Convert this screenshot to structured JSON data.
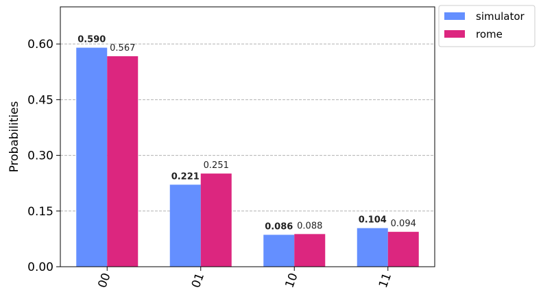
{
  "chart_data": {
    "type": "bar",
    "title": "",
    "xlabel": "",
    "ylabel": "Probabilities",
    "categories": [
      "00",
      "01",
      "10",
      "11"
    ],
    "series": [
      {
        "name": "simulator",
        "values": [
          0.59,
          0.221,
          0.086,
          0.104
        ],
        "labels": [
          "0.590",
          "0.221",
          "0.086",
          "0.104"
        ],
        "color": "#648fff"
      },
      {
        "name": "rome",
        "values": [
          0.567,
          0.251,
          0.088,
          0.094
        ],
        "labels": [
          "0.567",
          "0.251",
          "0.088",
          "0.094"
        ],
        "color": "#dc267f"
      }
    ],
    "ylim": [
      0,
      0.7
    ],
    "yticks": [
      0.0,
      0.15,
      0.3,
      0.45,
      0.6
    ],
    "ytick_labels": [
      "0.00",
      "0.15",
      "0.30",
      "0.45",
      "0.60"
    ],
    "grid": "horizontal-dashed",
    "legend_position": "outside-top-right",
    "xtick_rotation_deg": 70
  }
}
